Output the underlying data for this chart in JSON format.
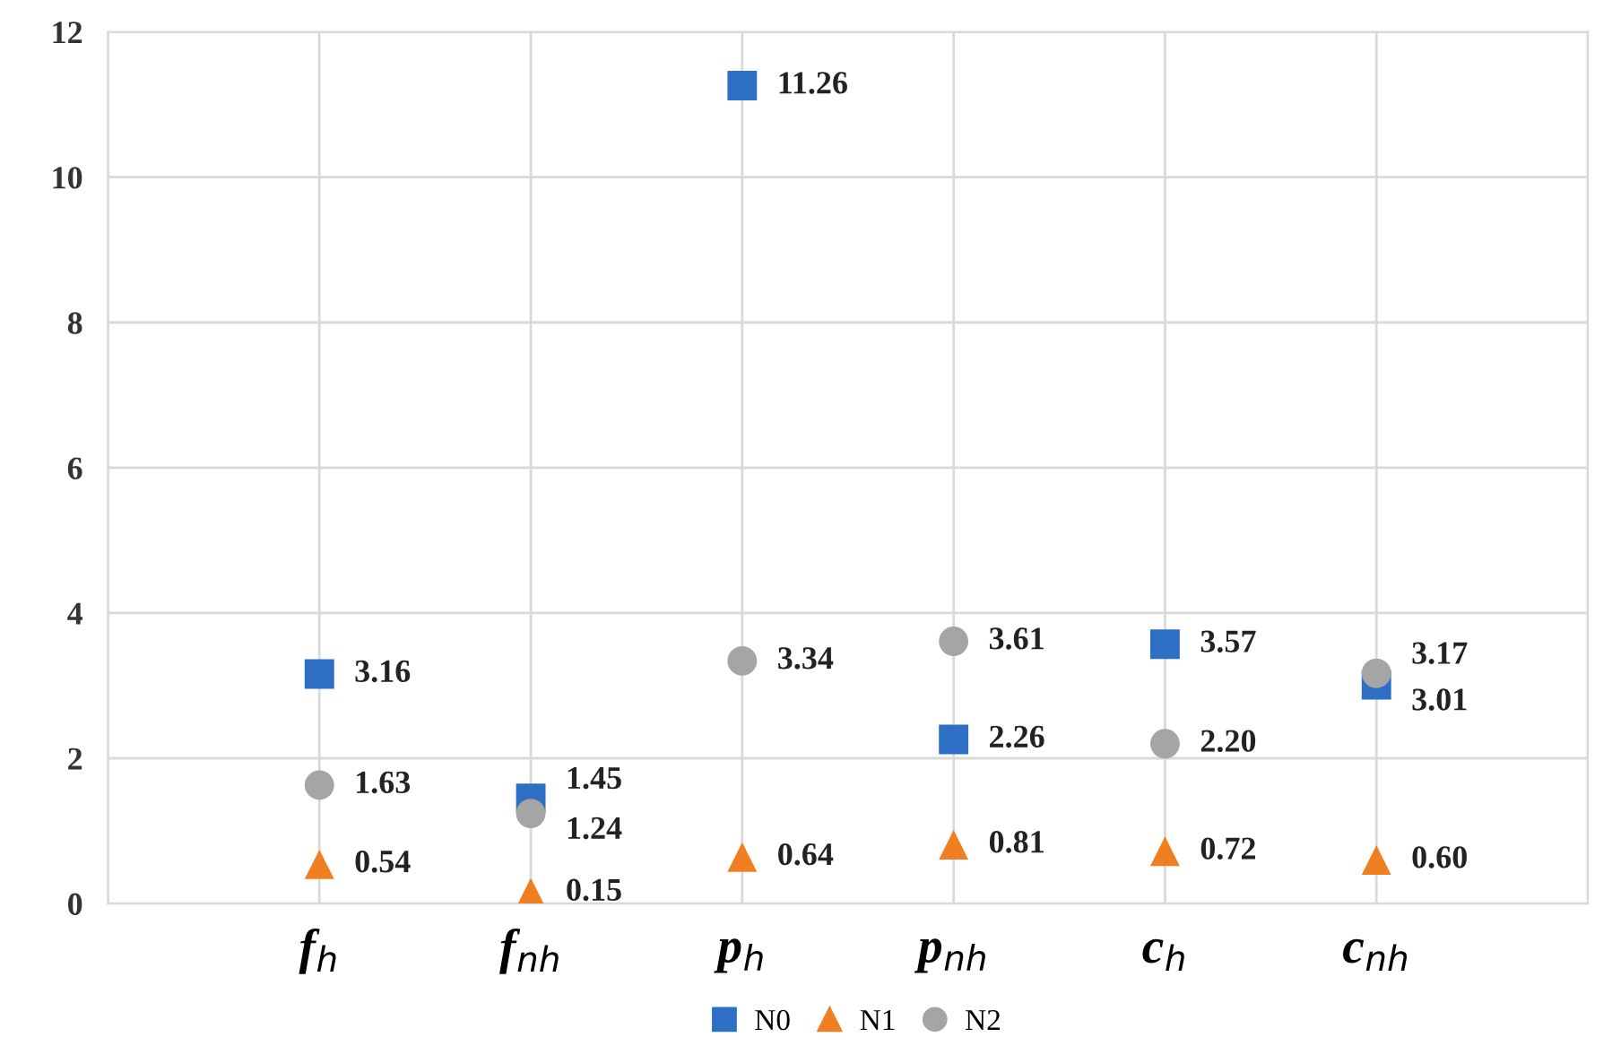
{
  "chart_data": {
    "type": "scatter",
    "categories": [
      null,
      "f$_{h}$",
      "f$_{nh}$",
      "p$_{h}$",
      "p$_{nh}$",
      "c$_{h}$",
      "c$_{nh}$",
      null
    ],
    "series": [
      {
        "name": "N0",
        "color": "#2e6fc6",
        "marker": "square",
        "values": [
          null,
          3.16,
          1.45,
          11.26,
          2.26,
          3.57,
          3.01,
          null
        ],
        "value_labels": [
          null,
          "3.16",
          "1.45",
          "11.26",
          "2.26",
          "3.57",
          "3.01",
          null
        ]
      },
      {
        "name": "N1",
        "color": "#f07f22",
        "marker": "triangle",
        "values": [
          null,
          0.54,
          0.15,
          0.64,
          0.81,
          0.72,
          0.6,
          null
        ],
        "value_labels": [
          null,
          "0.54",
          "0.15",
          "0.64",
          "0.81",
          "0.72",
          "0.60",
          null
        ]
      },
      {
        "name": "N2",
        "color": "#a5a5a5",
        "marker": "circle",
        "values": [
          null,
          1.63,
          1.24,
          3.34,
          3.61,
          2.2,
          3.17,
          null
        ],
        "value_labels": [
          null,
          "1.63",
          "1.24",
          "3.34",
          "3.61",
          "2.20",
          "3.17",
          null
        ]
      }
    ],
    "ylim": [
      0,
      12
    ],
    "yticks": [
      0,
      2,
      4,
      6,
      8,
      10,
      12
    ],
    "grid": true,
    "legend": "bottom"
  }
}
